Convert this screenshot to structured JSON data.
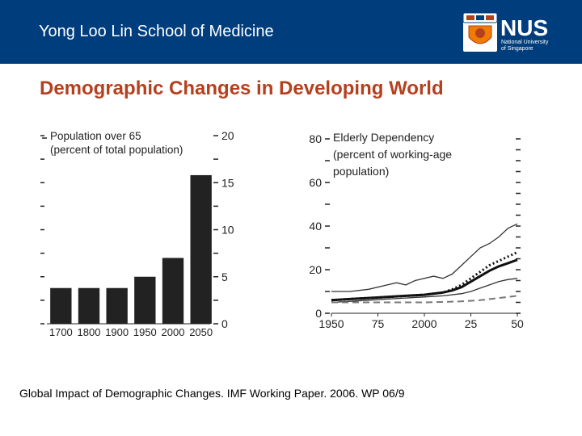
{
  "colors": {
    "header_bg": "#003d7c",
    "title_color": "#b5401f",
    "accent_orange": "#ef7c00",
    "bar_fill": "#222222"
  },
  "header": {
    "title": "Yong Loo Lin School of Medicine",
    "logo": {
      "wordmark": "NUS",
      "subtitle_line1": "National University",
      "subtitle_line2": "of Singapore"
    }
  },
  "slide": {
    "title": "Demographic Changes in Developing World",
    "citation": "Global Impact of Demographic Changes. IMF Working Paper. 2006. WP 06/9"
  },
  "chart_data": [
    {
      "type": "bar",
      "title_lines": [
        "Population over 65",
        "(percent of total population)"
      ],
      "categories": [
        "1700",
        "1800",
        "1900",
        "1950",
        "2000",
        "2050"
      ],
      "values": [
        3.8,
        3.8,
        3.8,
        5,
        7,
        15.8
      ],
      "ylim": [
        0,
        20
      ],
      "y_ticks": [
        0,
        5,
        10,
        15,
        20
      ],
      "y_axis_side": "right",
      "grid": false
    },
    {
      "type": "line",
      "title_lines": [
        "Elderly Dependency",
        "(percent of working-age",
        "population)"
      ],
      "x_ticks": [
        "1950",
        "75",
        "2000",
        "25",
        "50"
      ],
      "x_tick_values": [
        1950,
        1975,
        2000,
        2025,
        2050
      ],
      "xlim": [
        1950,
        2050
      ],
      "ylim": [
        0,
        80
      ],
      "y_ticks": [
        0,
        20,
        40,
        60,
        80
      ],
      "y_axis_side": "left",
      "grid": false,
      "series": [
        {
          "name": "thin solid (upper)",
          "style": "thin",
          "x": [
            1950,
            1960,
            1970,
            1980,
            1985,
            1990,
            1995,
            2000,
            2005,
            2010,
            2015,
            2020,
            2025,
            2030,
            2035,
            2040,
            2045,
            2050
          ],
          "y": [
            10,
            10,
            11,
            13,
            14,
            13,
            15,
            16,
            17,
            16,
            18,
            22,
            26,
            30,
            32,
            35,
            39,
            41
          ]
        },
        {
          "name": "dotted",
          "style": "dotted",
          "x": [
            1950,
            1960,
            1970,
            1980,
            1990,
            2000,
            2010,
            2015,
            2020,
            2025,
            2030,
            2035,
            2040,
            2045,
            2050
          ],
          "y": [
            6,
            6.5,
            7,
            7.5,
            8,
            8.5,
            9.5,
            11,
            13,
            16,
            19,
            22,
            24,
            26,
            28
          ]
        },
        {
          "name": "thick solid",
          "style": "thick",
          "x": [
            1950,
            1960,
            1970,
            1980,
            1990,
            2000,
            2010,
            2015,
            2020,
            2025,
            2030,
            2035,
            2040,
            2045,
            2050
          ],
          "y": [
            6,
            6.5,
            7,
            7.5,
            8,
            8.5,
            9.5,
            10.5,
            12,
            14.5,
            17,
            19.5,
            21.5,
            23,
            24.5
          ]
        },
        {
          "name": "thin solid (lower)",
          "style": "thin",
          "x": [
            1950,
            1960,
            1970,
            1980,
            1990,
            2000,
            2010,
            2020,
            2025,
            2030,
            2035,
            2040,
            2045,
            2050
          ],
          "y": [
            5,
            5.5,
            6,
            6.5,
            7,
            7.5,
            8,
            9,
            10,
            11.5,
            13,
            14.5,
            15.5,
            16
          ]
        },
        {
          "name": "dashed",
          "style": "dashed",
          "x": [
            1950,
            1960,
            1970,
            1980,
            1990,
            2000,
            2010,
            2020,
            2030,
            2040,
            2050
          ],
          "y": [
            5,
            5,
            5,
            5,
            5,
            5,
            5.2,
            5.5,
            6,
            7,
            8
          ]
        }
      ]
    }
  ]
}
